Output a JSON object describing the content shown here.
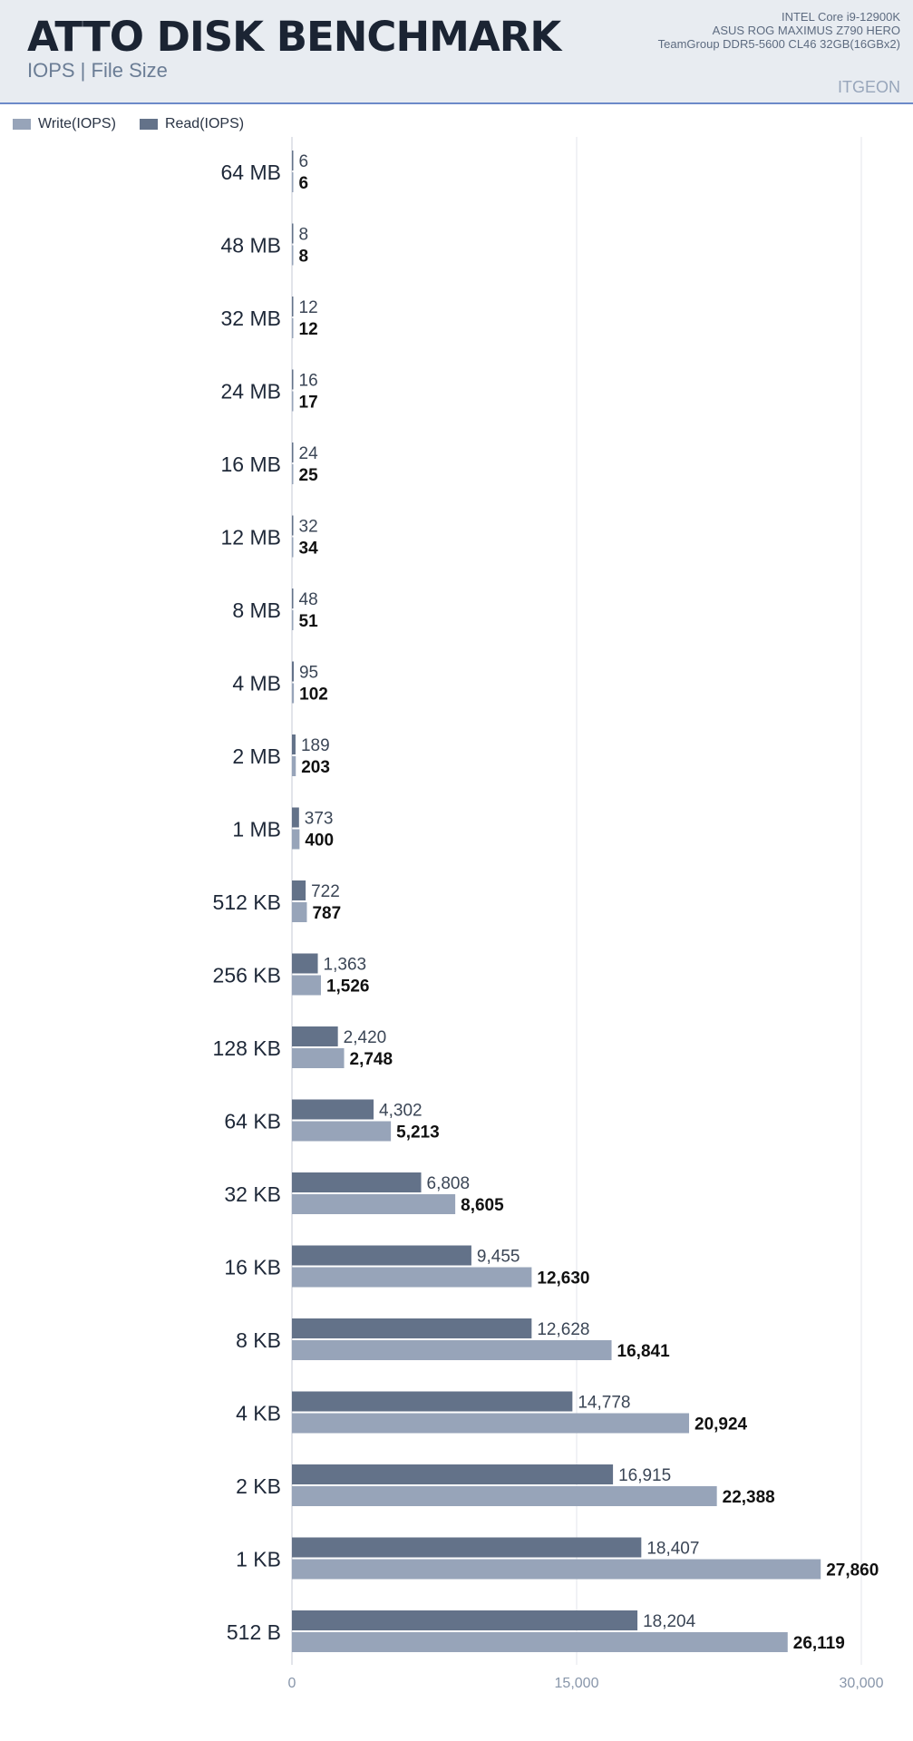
{
  "header": {
    "title": "ATTO DISK BENCHMARK",
    "subtitle": "IOPS | File Size",
    "specs": [
      "INTEL Core i9-12900K",
      "ASUS ROG MAXIMUS Z790 HERO",
      "TeamGroup DDR5-5600 CL46 32GB(16GBx2)"
    ],
    "brand": "ITGEON"
  },
  "colors": {
    "write": "#97a4b9",
    "read": "#637289",
    "header_bg": "#e8ecf1",
    "header_rule": "#6c8ac9"
  },
  "legend": [
    {
      "label": "Write(IOPS)",
      "color": "#97a4b9"
    },
    {
      "label": "Read(IOPS)",
      "color": "#637289"
    }
  ],
  "chart_data": {
    "type": "bar",
    "orientation": "horizontal",
    "categories": [
      "64 MB",
      "48 MB",
      "32 MB",
      "24 MB",
      "16 MB",
      "12 MB",
      "8 MB",
      "4 MB",
      "2 MB",
      "1 MB",
      "512 KB",
      "256 KB",
      "128 KB",
      "64 KB",
      "32 KB",
      "16 KB",
      "8 KB",
      "4 KB",
      "2 KB",
      "1 KB",
      "512 B"
    ],
    "series": [
      {
        "name": "Read(IOPS)",
        "values": [
          6,
          8,
          12,
          16,
          24,
          32,
          48,
          95,
          189,
          373,
          722,
          1363,
          2420,
          4302,
          6808,
          9455,
          12628,
          14778,
          16915,
          18407,
          18204
        ],
        "labels": [
          "6",
          "8",
          "12",
          "16",
          "24",
          "32",
          "48",
          "95",
          "189",
          "373",
          "722",
          "1,363",
          "2,420",
          "4,302",
          "6,808",
          "9,455",
          "12,628",
          "14,778",
          "16,915",
          "18,407",
          "18,204"
        ]
      },
      {
        "name": "Write(IOPS)",
        "values": [
          6,
          8,
          12,
          17,
          25,
          34,
          51,
          102,
          203,
          400,
          787,
          1526,
          2748,
          5213,
          8605,
          12630,
          16841,
          20924,
          22388,
          27860,
          26119
        ],
        "labels": [
          "6",
          "8",
          "12",
          "17",
          "25",
          "34",
          "51",
          "102",
          "203",
          "400",
          "787",
          "1,526",
          "2,748",
          "5,213",
          "8,605",
          "12,630",
          "16,841",
          "20,924",
          "22,388",
          "27,860",
          "26,119"
        ]
      }
    ],
    "xlim": [
      0,
      30000
    ],
    "xticks": [
      0,
      15000,
      30000
    ],
    "xtick_labels": [
      "0",
      "15,000",
      "30,000"
    ],
    "grid": true,
    "legend_position": "top-left"
  }
}
